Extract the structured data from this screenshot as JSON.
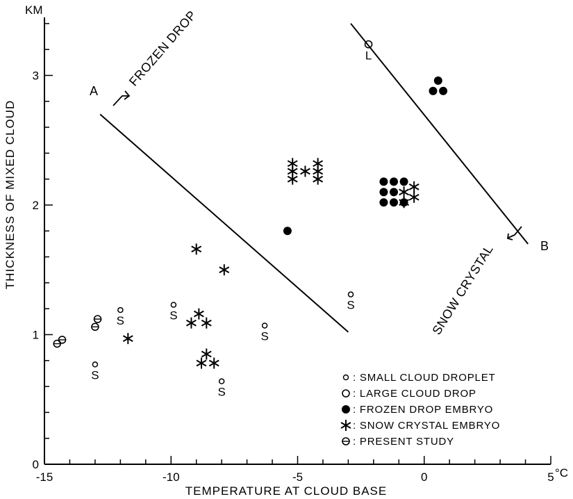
{
  "chart_data": {
    "type": "scatter",
    "xlabel": "TEMPERATURE AT CLOUD BASE",
    "ylabel": "THICKNESS OF MIXED CLOUD",
    "y_unit": "KM",
    "x_unit": "°C",
    "xlim": [
      -15,
      5
    ],
    "ylim": [
      0,
      3.4
    ],
    "x_ticks": [
      {
        "value": -15,
        "label": "-15"
      },
      {
        "value": -10,
        "label": "-10"
      },
      {
        "value": -5,
        "label": "-5"
      },
      {
        "value": 0,
        "label": "0"
      },
      {
        "value": 5,
        "label": "5"
      }
    ],
    "y_ticks": [
      {
        "value": 0,
        "label": "0"
      },
      {
        "value": 1,
        "label": "1"
      },
      {
        "value": 2,
        "label": "2"
      },
      {
        "value": 3,
        "label": "3"
      }
    ],
    "grid": false,
    "series": [
      {
        "name": "SMALL CLOUD DROPLET",
        "key": "small",
        "marker": "small-circle",
        "label_text": "S",
        "points": [
          {
            "x": -13.0,
            "y": 0.77
          },
          {
            "x": -12.0,
            "y": 1.19
          },
          {
            "x": -9.9,
            "y": 1.23
          },
          {
            "x": -8.0,
            "y": 0.64
          },
          {
            "x": -6.3,
            "y": 1.07
          },
          {
            "x": -2.9,
            "y": 1.31
          }
        ]
      },
      {
        "name": "LARGE CLOUD DROP",
        "key": "large",
        "marker": "circle",
        "label_text": "L",
        "points": [
          {
            "x": -2.2,
            "y": 3.24
          }
        ]
      },
      {
        "name": "FROZEN DROP EMBRYO",
        "key": "frozen",
        "marker": "filled-circle",
        "points": [
          {
            "x": -5.4,
            "y": 1.8
          },
          {
            "x": 0.55,
            "y": 2.96
          },
          {
            "x": 0.35,
            "y": 2.88
          },
          {
            "x": 0.75,
            "y": 2.88
          },
          {
            "x": -1.6,
            "y": 2.18
          },
          {
            "x": -1.6,
            "y": 2.1
          },
          {
            "x": -1.6,
            "y": 2.02
          },
          {
            "x": -1.2,
            "y": 2.18
          },
          {
            "x": -1.2,
            "y": 2.1
          },
          {
            "x": -1.2,
            "y": 2.02
          },
          {
            "x": -0.8,
            "y": 2.18
          },
          {
            "x": -0.8,
            "y": 2.02
          }
        ]
      },
      {
        "name": "SNOW CRYSTAL EMBRYO",
        "key": "snow",
        "marker": "asterisk",
        "points": [
          {
            "x": -5.2,
            "y": 2.32
          },
          {
            "x": -5.2,
            "y": 2.26
          },
          {
            "x": -5.2,
            "y": 2.2
          },
          {
            "x": -4.7,
            "y": 2.26
          },
          {
            "x": -4.2,
            "y": 2.32
          },
          {
            "x": -4.2,
            "y": 2.26
          },
          {
            "x": -4.2,
            "y": 2.2
          },
          {
            "x": -0.8,
            "y": 2.1
          },
          {
            "x": -0.8,
            "y": 2.02
          },
          {
            "x": -0.4,
            "y": 2.14
          },
          {
            "x": -0.4,
            "y": 2.06
          },
          {
            "x": -9.0,
            "y": 1.66
          },
          {
            "x": -7.9,
            "y": 1.5
          },
          {
            "x": -8.9,
            "y": 1.16
          },
          {
            "x": -9.2,
            "y": 1.09
          },
          {
            "x": -8.6,
            "y": 1.09
          },
          {
            "x": -11.7,
            "y": 0.97
          },
          {
            "x": -8.6,
            "y": 0.85
          },
          {
            "x": -8.8,
            "y": 0.78
          },
          {
            "x": -8.3,
            "y": 0.78
          }
        ]
      },
      {
        "name": "PRESENT STUDY",
        "key": "present",
        "marker": "theta",
        "points": [
          {
            "x": -14.5,
            "y": 0.93
          },
          {
            "x": -14.3,
            "y": 0.96
          },
          {
            "x": -13.0,
            "y": 1.06
          },
          {
            "x": -12.9,
            "y": 1.12
          }
        ]
      }
    ],
    "boundary_lines": [
      {
        "label": "A",
        "from": {
          "x": -12.8,
          "y": 2.7
        },
        "to": {
          "x": -3.0,
          "y": 1.02
        },
        "annotation": "FROZEN DROP"
      },
      {
        "label": "B",
        "from": {
          "x": -2.9,
          "y": 3.4
        },
        "to": {
          "x": 4.1,
          "y": 1.7
        },
        "annotation": "SNOW CRYSTAL"
      }
    ],
    "legend": {
      "placement": "bottom-right",
      "items": [
        {
          "key": "small",
          "text": ": SMALL CLOUD DROPLET"
        },
        {
          "key": "large",
          "text": ": LARGE CLOUD DROP"
        },
        {
          "key": "frozen",
          "text": ": FROZEN DROP EMBRYO"
        },
        {
          "key": "snow",
          "text": ": SNOW CRYSTAL EMBRYO"
        },
        {
          "key": "present",
          "text": ": PRESENT STUDY"
        }
      ]
    }
  }
}
